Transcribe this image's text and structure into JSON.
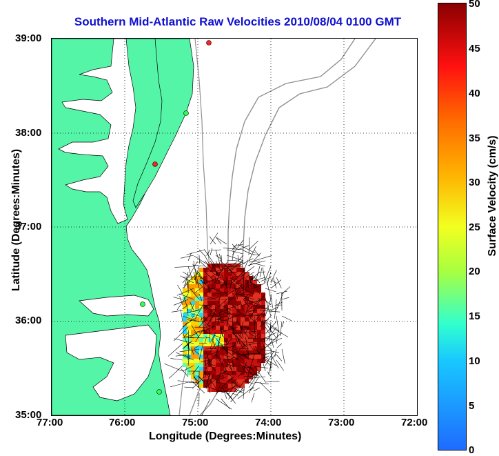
{
  "title": "Southern Mid-Atlantic Raw Velocities 2010/08/04 0100 GMT",
  "xlabel": "Longitude (Degrees:Minutes)",
  "ylabel": "Latitude (Degrees:Minutes)",
  "x_ticks": [
    "77:00",
    "76:00",
    "75:00",
    "74:00",
    "73:00",
    "72:00"
  ],
  "y_ticks": [
    "39:00",
    "38:00",
    "37:00",
    "36:00",
    "35:00"
  ],
  "colorbar": {
    "label": "Surface Velocity (cm/s)",
    "ticks": [
      "50",
      "45",
      "40",
      "35",
      "30",
      "25",
      "20",
      "15",
      "10",
      "5",
      "0"
    ]
  },
  "colors": {
    "land": "#55f5a8",
    "bathymetry": "#909090",
    "title": "#1010d0"
  }
}
